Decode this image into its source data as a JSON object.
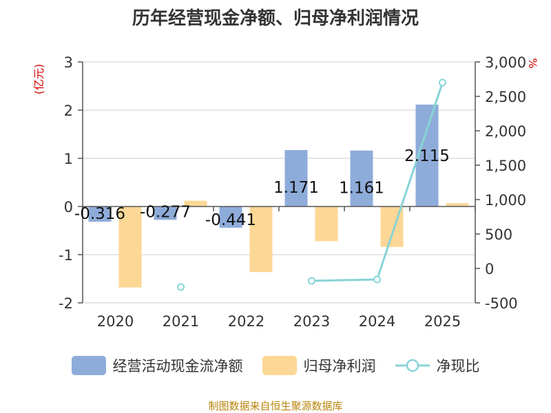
{
  "title": "历年经营现金净额、归母净利润情况",
  "footer": "制图数据来自恒生聚源数据库",
  "colors": {
    "cash_flow": "#8eacda",
    "net_profit": "#fdd795",
    "ratio": "#88d4d6",
    "axis_text": "#333333",
    "unit_text": "#d40000"
  },
  "chart_data": {
    "type": "bar",
    "title": "历年经营现金净额、归母净利润情况",
    "categories": [
      "2020",
      "2021",
      "2022",
      "2023",
      "2024",
      "2025"
    ],
    "left_axis": {
      "unit": "(亿元)",
      "ylim": [
        -2,
        3
      ],
      "ticks": [
        "3",
        "2",
        "1",
        "0",
        "-1",
        "-2"
      ]
    },
    "right_axis": {
      "unit": "%",
      "ylim": [
        -500,
        3000
      ],
      "ticks": [
        "3,000",
        "2,500",
        "2,000",
        "1,500",
        "1,000",
        "500",
        "0",
        "-500"
      ]
    },
    "series": [
      {
        "name": "经营活动现金流净额",
        "type": "bar",
        "axis": "left",
        "values": [
          -0.316,
          -0.277,
          -0.441,
          1.171,
          1.161,
          2.115
        ],
        "labels": [
          "-0.316",
          "-0.277",
          "-0.441",
          "1.171",
          "1.161",
          "2.115"
        ]
      },
      {
        "name": "归母净利润",
        "type": "bar",
        "axis": "left",
        "values": [
          -1.68,
          0.12,
          -1.36,
          -0.72,
          -0.84,
          0.07
        ]
      },
      {
        "name": "净现比",
        "type": "line",
        "axis": "right",
        "values": [
          null,
          -270,
          null,
          -180,
          -160,
          2700
        ]
      }
    ],
    "grid": true,
    "legend_position": "bottom"
  }
}
